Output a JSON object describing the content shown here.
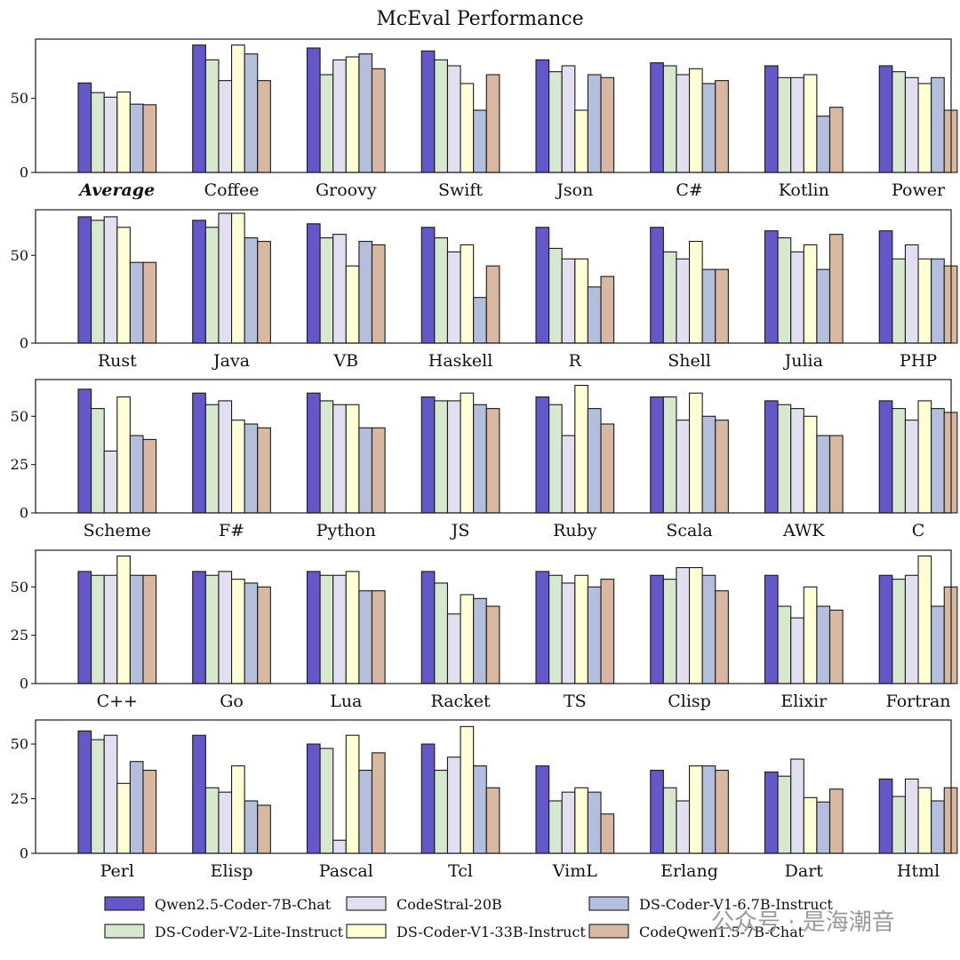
{
  "chart_data": {
    "type": "bar",
    "title": "McEval Performance",
    "series": [
      {
        "name": "Qwen2.5-Coder-7B-Chat",
        "color": "#6457c9"
      },
      {
        "name": "DS-Coder-V2-Lite-Instruct",
        "color": "#d6e9cf"
      },
      {
        "name": "CodeStral-20B",
        "color": "#e2e0f0"
      },
      {
        "name": "DS-Coder-V1-33B-Instruct",
        "color": "#ffffd6"
      },
      {
        "name": "DS-Coder-V1-6.7B-Instruct",
        "color": "#b3bfdc"
      },
      {
        "name": "CodeQwen1.5-7B-Chat",
        "color": "#d8b8a0"
      }
    ],
    "panels": [
      {
        "ylim": [
          0,
          90
        ],
        "yticks": [
          0,
          50
        ],
        "groups": [
          {
            "label": "Average",
            "bold_italic": true,
            "values": [
              60.4,
              53.9,
              50.8,
              54.3,
              46.1,
              45.7
            ]
          },
          {
            "label": "Coffee",
            "values": [
              86,
              76,
              62,
              86,
              80,
              62
            ]
          },
          {
            "label": "Groovy",
            "values": [
              84,
              66,
              76,
              78,
              80,
              70
            ]
          },
          {
            "label": "Swift",
            "values": [
              82,
              76,
              72,
              60,
              42,
              66
            ]
          },
          {
            "label": "Json",
            "values": [
              76,
              68,
              72,
              42,
              66,
              64
            ]
          },
          {
            "label": "C#",
            "values": [
              74,
              72,
              66,
              70,
              60,
              62
            ]
          },
          {
            "label": "Kotlin",
            "values": [
              72,
              64,
              64,
              66,
              38,
              44
            ]
          },
          {
            "label": "Power",
            "values": [
              72,
              68,
              64,
              60,
              64,
              42
            ]
          }
        ]
      },
      {
        "ylim": [
          0,
          76
        ],
        "yticks": [
          0,
          50
        ],
        "groups": [
          {
            "label": "Rust",
            "values": [
              72,
              70,
              72,
              66,
              46,
              46
            ]
          },
          {
            "label": "Java",
            "values": [
              70,
              66,
              74,
              74,
              60,
              58
            ]
          },
          {
            "label": "VB",
            "values": [
              68,
              60,
              62,
              44,
              58,
              56
            ]
          },
          {
            "label": "Haskell",
            "values": [
              66,
              60,
              52,
              56,
              26,
              44
            ]
          },
          {
            "label": "R",
            "values": [
              66,
              54,
              48,
              48,
              32,
              38
            ]
          },
          {
            "label": "Shell",
            "values": [
              66,
              52,
              48,
              58,
              42,
              42
            ]
          },
          {
            "label": "Julia",
            "values": [
              64,
              60,
              52,
              56,
              42,
              62
            ]
          },
          {
            "label": "PHP",
            "values": [
              64,
              48,
              56,
              48,
              48,
              44
            ]
          }
        ]
      },
      {
        "ylim": [
          0,
          69
        ],
        "yticks": [
          0,
          25,
          50
        ],
        "groups": [
          {
            "label": "Scheme",
            "values": [
              64,
              54,
              32,
              60,
              40,
              38
            ]
          },
          {
            "label": "F#",
            "values": [
              62,
              56,
              58,
              48,
              46,
              44
            ]
          },
          {
            "label": "Python",
            "values": [
              62,
              58,
              56,
              56,
              44,
              44
            ]
          },
          {
            "label": "JS",
            "values": [
              60,
              58,
              58,
              62,
              56,
              54
            ]
          },
          {
            "label": "Ruby",
            "values": [
              60,
              56,
              40,
              66,
              54,
              46
            ]
          },
          {
            "label": "Scala",
            "values": [
              60,
              60,
              48,
              62,
              50,
              48
            ]
          },
          {
            "label": "AWK",
            "values": [
              58,
              56,
              54,
              50,
              40,
              40
            ]
          },
          {
            "label": "C",
            "values": [
              58,
              54,
              48,
              58,
              54,
              52
            ]
          }
        ]
      },
      {
        "ylim": [
          0,
          69
        ],
        "yticks": [
          0,
          25,
          50
        ],
        "groups": [
          {
            "label": "C++",
            "values": [
              58,
              56,
              56,
              66,
              56,
              56
            ]
          },
          {
            "label": "Go",
            "values": [
              58,
              56,
              58,
              54,
              52,
              50
            ]
          },
          {
            "label": "Lua",
            "values": [
              58,
              56,
              56,
              58,
              48,
              48
            ]
          },
          {
            "label": "Racket",
            "values": [
              58,
              52,
              36,
              46,
              44,
              40
            ]
          },
          {
            "label": "TS",
            "values": [
              58,
              56,
              52,
              56,
              50,
              54
            ]
          },
          {
            "label": "Clisp",
            "values": [
              56,
              54,
              60,
              60,
              56,
              48
            ]
          },
          {
            "label": "Elixir",
            "values": [
              56,
              40,
              34,
              50,
              40,
              38
            ]
          },
          {
            "label": "Fortran",
            "values": [
              56,
              54,
              56,
              66,
              40,
              50
            ]
          }
        ]
      },
      {
        "ylim": [
          0,
          61
        ],
        "yticks": [
          0,
          25,
          50
        ],
        "groups": [
          {
            "label": "Perl",
            "values": [
              56,
              52,
              54,
              32,
              42,
              38
            ]
          },
          {
            "label": "Elisp",
            "values": [
              54,
              30,
              28,
              40,
              24,
              22
            ]
          },
          {
            "label": "Pascal",
            "values": [
              50,
              48,
              6,
              54,
              38,
              46
            ]
          },
          {
            "label": "Tcl",
            "values": [
              50,
              38,
              44,
              58,
              40,
              30
            ]
          },
          {
            "label": "VimL",
            "values": [
              40,
              24,
              28,
              30,
              28,
              18
            ]
          },
          {
            "label": "Erlang",
            "values": [
              38,
              30,
              24,
              40,
              40,
              38
            ]
          },
          {
            "label": "Dart",
            "values": [
              37.2,
              35.3,
              43.1,
              25.5,
              23.5,
              29.4
            ]
          },
          {
            "label": "Html",
            "values": [
              34,
              26,
              34,
              30,
              24,
              30
            ]
          }
        ]
      }
    ],
    "legend_placement": "bottom",
    "grid": false
  },
  "watermark": "公众号 · 是海潮音"
}
